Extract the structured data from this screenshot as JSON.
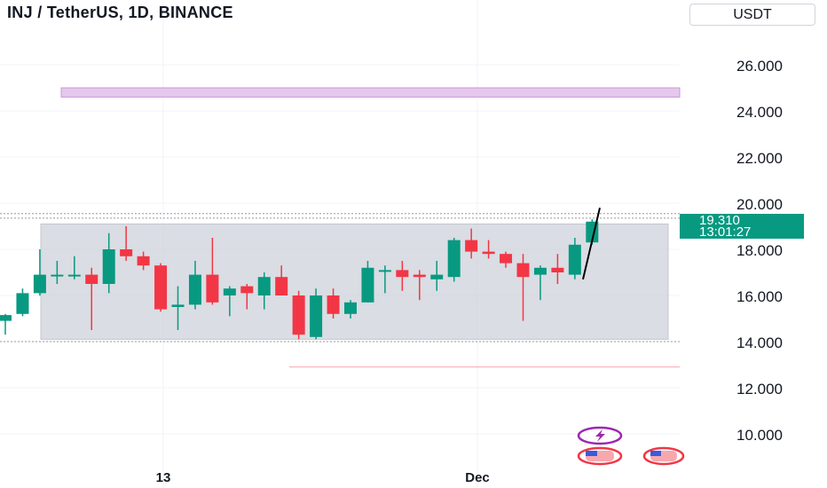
{
  "header": {
    "title": "INJ / TetherUS, 1D, BINANCE",
    "currency": "USDT"
  },
  "price_tag": {
    "price": "19.310",
    "countdown": "13:01:27"
  },
  "colors": {
    "up": "#089981",
    "down": "#f23645",
    "zone": "#d1d4dc",
    "resistance": "#e1bee7",
    "grid": "#f0f3fa",
    "support_line": "#f7a8ae"
  },
  "chart_data": {
    "type": "candlestick",
    "title": "INJ / TetherUS, 1D, BINANCE",
    "x_tick_labels": [
      "13",
      "Dec"
    ],
    "y_ticks": [
      10,
      12,
      14,
      16,
      18,
      20,
      22,
      24,
      26
    ],
    "y_tick_labels": [
      "10.000",
      "12.000",
      "14.000",
      "16.000",
      "18.000",
      "20.000",
      "22.000",
      "24.000",
      "26.000"
    ],
    "ylim": [
      9,
      27
    ],
    "last_price": 19.31,
    "candles": [
      {
        "o": 14.9,
        "h": 15.2,
        "l": 14.3,
        "c": 15.15
      },
      {
        "o": 15.2,
        "h": 16.3,
        "l": 15.1,
        "c": 16.1
      },
      {
        "o": 16.1,
        "h": 18.0,
        "l": 16.0,
        "c": 16.9
      },
      {
        "o": 16.9,
        "h": 17.5,
        "l": 16.5,
        "c": 16.9
      },
      {
        "o": 16.9,
        "h": 17.7,
        "l": 16.7,
        "c": 16.9
      },
      {
        "o": 16.9,
        "h": 17.2,
        "l": 14.5,
        "c": 16.5
      },
      {
        "o": 16.5,
        "h": 18.7,
        "l": 16.1,
        "c": 18.0
      },
      {
        "o": 18.0,
        "h": 19.0,
        "l": 17.5,
        "c": 17.7
      },
      {
        "o": 17.7,
        "h": 17.9,
        "l": 17.1,
        "c": 17.3
      },
      {
        "o": 17.3,
        "h": 17.4,
        "l": 15.3,
        "c": 15.4
      },
      {
        "o": 15.5,
        "h": 16.4,
        "l": 14.5,
        "c": 15.6
      },
      {
        "o": 15.6,
        "h": 17.5,
        "l": 15.4,
        "c": 16.9
      },
      {
        "o": 16.9,
        "h": 18.5,
        "l": 15.6,
        "c": 15.7
      },
      {
        "o": 16.0,
        "h": 16.4,
        "l": 15.1,
        "c": 16.3
      },
      {
        "o": 16.4,
        "h": 16.5,
        "l": 15.4,
        "c": 16.1
      },
      {
        "o": 16.0,
        "h": 17.0,
        "l": 15.4,
        "c": 16.8
      },
      {
        "o": 16.8,
        "h": 17.3,
        "l": 16.0,
        "c": 16.0
      },
      {
        "o": 16.0,
        "h": 16.2,
        "l": 14.1,
        "c": 14.3
      },
      {
        "o": 14.2,
        "h": 16.3,
        "l": 14.1,
        "c": 16.0
      },
      {
        "o": 16.0,
        "h": 16.3,
        "l": 15.0,
        "c": 15.2
      },
      {
        "o": 15.2,
        "h": 15.8,
        "l": 15.0,
        "c": 15.7
      },
      {
        "o": 15.7,
        "h": 17.5,
        "l": 15.7,
        "c": 17.2
      },
      {
        "o": 17.1,
        "h": 17.3,
        "l": 16.1,
        "c": 17.1
      },
      {
        "o": 17.1,
        "h": 17.5,
        "l": 16.2,
        "c": 16.8
      },
      {
        "o": 16.9,
        "h": 17.1,
        "l": 15.8,
        "c": 16.8
      },
      {
        "o": 16.7,
        "h": 17.5,
        "l": 16.2,
        "c": 16.9
      },
      {
        "o": 16.8,
        "h": 18.5,
        "l": 16.6,
        "c": 18.4
      },
      {
        "o": 18.4,
        "h": 18.9,
        "l": 17.6,
        "c": 17.9
      },
      {
        "o": 17.9,
        "h": 18.4,
        "l": 17.6,
        "c": 17.8
      },
      {
        "o": 17.8,
        "h": 17.9,
        "l": 17.2,
        "c": 17.4
      },
      {
        "o": 17.4,
        "h": 17.8,
        "l": 14.9,
        "c": 16.8
      },
      {
        "o": 16.9,
        "h": 17.3,
        "l": 15.8,
        "c": 17.2
      },
      {
        "o": 17.2,
        "h": 17.8,
        "l": 16.5,
        "c": 17.0
      },
      {
        "o": 16.9,
        "h": 18.5,
        "l": 16.7,
        "c": 18.2
      },
      {
        "o": 18.3,
        "h": 19.3,
        "l": 18.2,
        "c": 19.2
      }
    ],
    "range_zone": {
      "top": 19.1,
      "bottom": 14.1
    },
    "resistance_zone": {
      "top": 25.0,
      "bottom": 24.6
    },
    "support_line": 12.9,
    "level_lines": [
      19.55,
      19.35,
      14.0
    ],
    "annotation_line": {
      "from": 16.7,
      "to": 19.8
    }
  }
}
